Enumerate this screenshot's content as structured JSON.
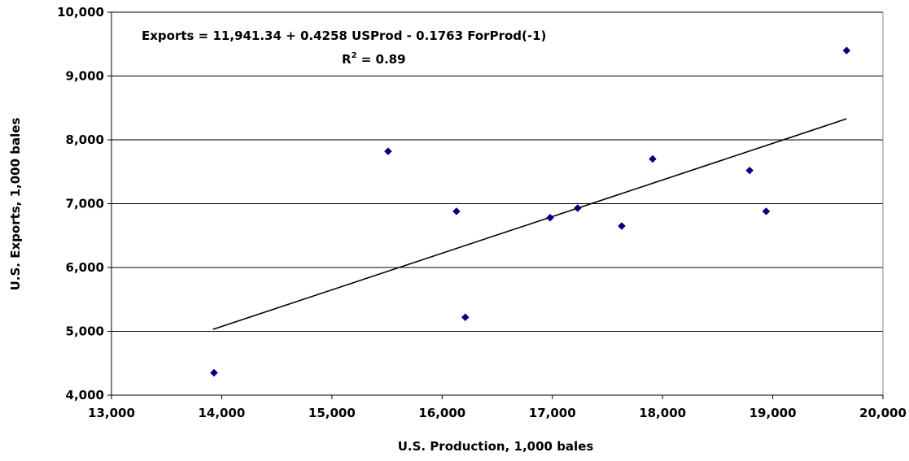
{
  "chart_data": {
    "type": "scatter",
    "title": "",
    "xlabel": "U.S. Production, 1,000 bales",
    "ylabel": "U.S. Exports, 1,000 bales",
    "xlim": [
      13000,
      20000
    ],
    "ylim": [
      4000,
      10000
    ],
    "xticks": [
      13000,
      14000,
      15000,
      16000,
      17000,
      18000,
      19000,
      20000
    ],
    "yticks": [
      4000,
      5000,
      6000,
      7000,
      8000,
      9000,
      10000
    ],
    "xtick_labels": [
      "13,000",
      "14,000",
      "15,000",
      "16,000",
      "17,000",
      "18,000",
      "19,000",
      "20,000"
    ],
    "ytick_labels": [
      "4,000",
      "5,000",
      "6,000",
      "7,000",
      "8,000",
      "9,000",
      "10,000"
    ],
    "grid": "horizontal",
    "legend": "none",
    "marker": "diamond",
    "marker_color": "#000080",
    "line_color": "#000000",
    "points": [
      {
        "x": 13930,
        "y": 4350
      },
      {
        "x": 15510,
        "y": 7820
      },
      {
        "x": 16130,
        "y": 6880
      },
      {
        "x": 16210,
        "y": 5220
      },
      {
        "x": 16980,
        "y": 6780
      },
      {
        "x": 17230,
        "y": 6930
      },
      {
        "x": 17630,
        "y": 6650
      },
      {
        "x": 17910,
        "y": 7700
      },
      {
        "x": 18790,
        "y": 7520
      },
      {
        "x": 18940,
        "y": 6880
      },
      {
        "x": 19670,
        "y": 9400
      }
    ],
    "fit_line": {
      "x": [
        13920,
        19670
      ],
      "y": [
        5030,
        8330
      ]
    },
    "annotations": {
      "equation": "Exports = 11,941.34 + 0.4258 USProd - 0.1763 ForProd(-1)",
      "r2_prefix": "R",
      "r2_superscript": "2",
      "r2_value": " = 0.89"
    }
  }
}
